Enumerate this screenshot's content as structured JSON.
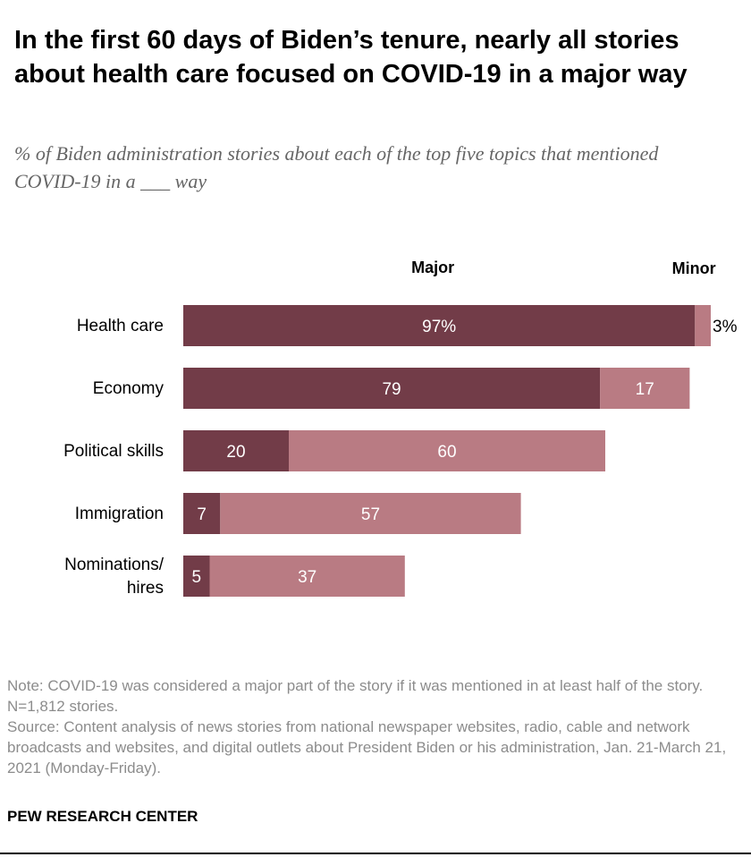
{
  "header": {
    "title": "In the first 60 days of Biden’s tenure, nearly all stories about health care focused on COVID-19 in a major way",
    "subtitle": "% of Biden administration stories about each of the top five topics that mentioned COVID-19 in a ___ way"
  },
  "chart_data": {
    "type": "bar",
    "orientation": "horizontal",
    "stacked": true,
    "categories": [
      "Health care",
      "Economy",
      "Political skills",
      "Immigration",
      "Nominations/ hires"
    ],
    "category_lines": [
      [
        "Health care"
      ],
      [
        "Economy"
      ],
      [
        "Political skills"
      ],
      [
        "Immigration"
      ],
      [
        "Nominations/",
        "hires"
      ]
    ],
    "series": [
      {
        "name": "Major",
        "values": [
          97,
          79,
          20,
          7,
          5
        ],
        "labels": [
          "97%",
          "79",
          "20",
          "7",
          "5"
        ],
        "color": "#723c48"
      },
      {
        "name": "Minor",
        "values": [
          3,
          17,
          60,
          57,
          37
        ],
        "labels": [
          "3%",
          "17",
          "60",
          "57",
          "37"
        ],
        "color": "#b97b83"
      }
    ],
    "xlim": [
      0,
      100
    ],
    "title": "",
    "xlabel": "",
    "ylabel": ""
  },
  "notes": {
    "note": "Note: COVID-19 was considered a major part of the story if it was mentioned in at least half of the story. N=1,812 stories.",
    "source": "Source: Content analysis of news stories from national newspaper websites, radio, cable and network broadcasts and websites, and digital outlets about President Biden or his administration, Jan. 21-March 21, 2021 (Monday-Friday)."
  },
  "brand": "PEW RESEARCH CENTER",
  "colors": {
    "major": "#723c48",
    "minor": "#b97b83",
    "label_on_bar": "#ffffff",
    "note_text": "#8c8c8c"
  }
}
